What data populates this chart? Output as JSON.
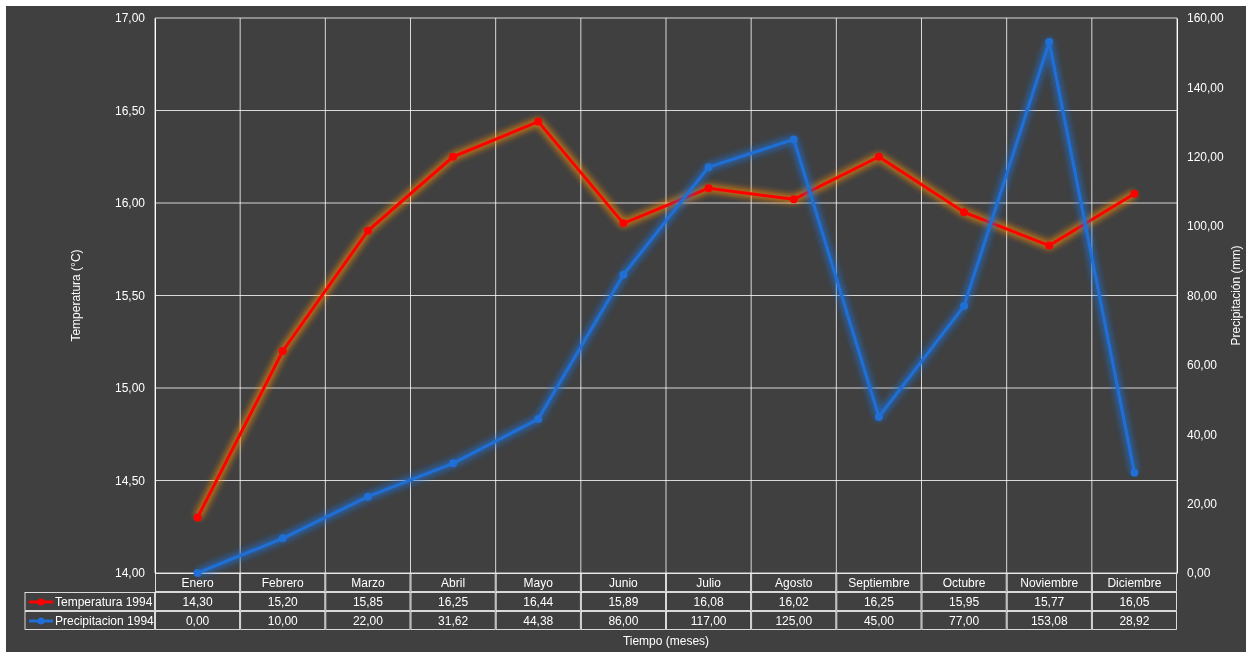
{
  "chart_data": {
    "type": "line",
    "xlabel": "Tiempo (meses)",
    "ylabel": "Temperatura (°C)",
    "y2label": "Precipitación (mm)",
    "categories": [
      "Enero",
      "Febrero",
      "Marzo",
      "Abril",
      "Mayo",
      "Junio",
      "Julio",
      "Agosto",
      "Septiembre",
      "Octubre",
      "Noviembre",
      "Diciembre"
    ],
    "series": [
      {
        "name": "Temperatura 1994",
        "color": "#ff0000",
        "values": [
          14.3,
          15.2,
          15.85,
          16.25,
          16.44,
          15.89,
          16.08,
          16.02,
          16.25,
          15.95,
          15.77,
          16.05
        ],
        "value_labels": [
          "14,30",
          "15,20",
          "15,85",
          "16,25",
          "16,44",
          "15,89",
          "16,08",
          "16,02",
          "16,25",
          "15,95",
          "15,77",
          "16,05"
        ]
      },
      {
        "name": "Precipitacion 1994",
        "color": "#1f6fd6",
        "axis": "y2",
        "values": [
          0,
          10,
          22,
          31.62,
          44.38,
          86,
          117,
          125,
          45,
          77,
          153.08,
          28.92
        ],
        "value_labels": [
          "0,00",
          "10,00",
          "22,00",
          "31,62",
          "44,38",
          "86,00",
          "117,00",
          "125,00",
          "45,00",
          "77,00",
          "153,08",
          "28,92"
        ]
      }
    ],
    "ylim": [
      14,
      17
    ],
    "yticks": [
      {
        "value": 14,
        "label": "14,00"
      },
      {
        "value": 14.5,
        "label": "14,50"
      },
      {
        "value": 15,
        "label": "15,00"
      },
      {
        "value": 15.5,
        "label": "15,50"
      },
      {
        "value": 16,
        "label": "16,00"
      },
      {
        "value": 16.5,
        "label": "16,50"
      },
      {
        "value": 17,
        "label": "17,00"
      }
    ],
    "y2lim": [
      0,
      160
    ],
    "y2ticks": [
      {
        "value": 0,
        "label": "0,00"
      },
      {
        "value": 20,
        "label": "20,00"
      },
      {
        "value": 40,
        "label": "40,00"
      },
      {
        "value": 60,
        "label": "60,00"
      },
      {
        "value": 80,
        "label": "80,00"
      },
      {
        "value": 100,
        "label": "100,00"
      },
      {
        "value": 120,
        "label": "120,00"
      },
      {
        "value": 140,
        "label": "140,00"
      },
      {
        "value": 160,
        "label": "160,00"
      }
    ],
    "grid": true,
    "legend": "bottom",
    "marker": "circle",
    "line_style": "solid"
  }
}
